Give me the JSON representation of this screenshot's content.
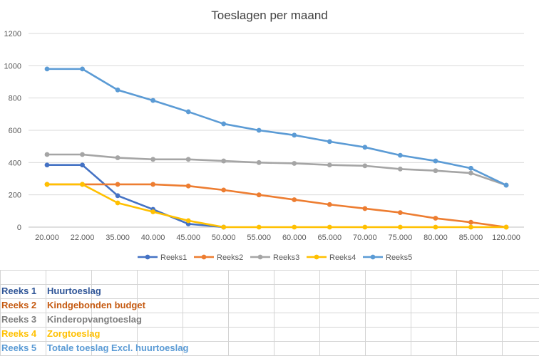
{
  "chart_data": {
    "type": "line",
    "title": "Toeslagen per maand",
    "xlabel": "",
    "ylabel": "",
    "ylim": [
      0,
      1200
    ],
    "yticks": [
      "0",
      "200",
      "400",
      "600",
      "800",
      "1000",
      "1200"
    ],
    "grid": true,
    "legend_position": "bottom",
    "categories": [
      "20.000",
      "22.000",
      "35.000",
      "40.000",
      "45.000",
      "50.000",
      "55.000",
      "60.000",
      "65.000",
      "70.000",
      "75.000",
      "80.000",
      "85.000",
      "120.000"
    ],
    "series": [
      {
        "name": "Reeks1",
        "color": "#4472c4",
        "values": [
          385,
          385,
          195,
          110,
          20,
          0,
          null,
          null,
          null,
          null,
          null,
          null,
          null,
          null
        ]
      },
      {
        "name": "Reeks2",
        "color": "#ed7d31",
        "values": [
          265,
          265,
          265,
          265,
          255,
          230,
          200,
          170,
          140,
          115,
          90,
          55,
          30,
          0
        ]
      },
      {
        "name": "Reeks3",
        "color": "#a5a5a5",
        "values": [
          450,
          450,
          430,
          420,
          420,
          410,
          400,
          395,
          385,
          380,
          360,
          350,
          335,
          260
        ]
      },
      {
        "name": "Reeks4",
        "color": "#ffc000",
        "values": [
          265,
          265,
          150,
          95,
          40,
          0,
          0,
          0,
          0,
          0,
          0,
          0,
          0,
          0
        ]
      },
      {
        "name": "Reeks5",
        "color": "#5b9bd5",
        "values": [
          980,
          980,
          850,
          785,
          715,
          640,
          600,
          570,
          530,
          495,
          445,
          410,
          365,
          260
        ]
      }
    ]
  },
  "sheet_rows": [
    {
      "label": "Reeks 1",
      "name": "Huurtoeslag",
      "color": "#2f5597"
    },
    {
      "label": "Reeks 2",
      "name": "Kindgebonden budget",
      "color": "#c55a11"
    },
    {
      "label": "Reeks 3",
      "name": "Kinderopvangtoeslag",
      "color": "#7f7f7f"
    },
    {
      "label": "Reeks 4",
      "name": "Zorgtoeslag",
      "color": "#ffc000"
    },
    {
      "label": "Reeks 5",
      "name": "Totale toeslag Excl. huurtoeslag",
      "color": "#5b9bd5"
    }
  ]
}
